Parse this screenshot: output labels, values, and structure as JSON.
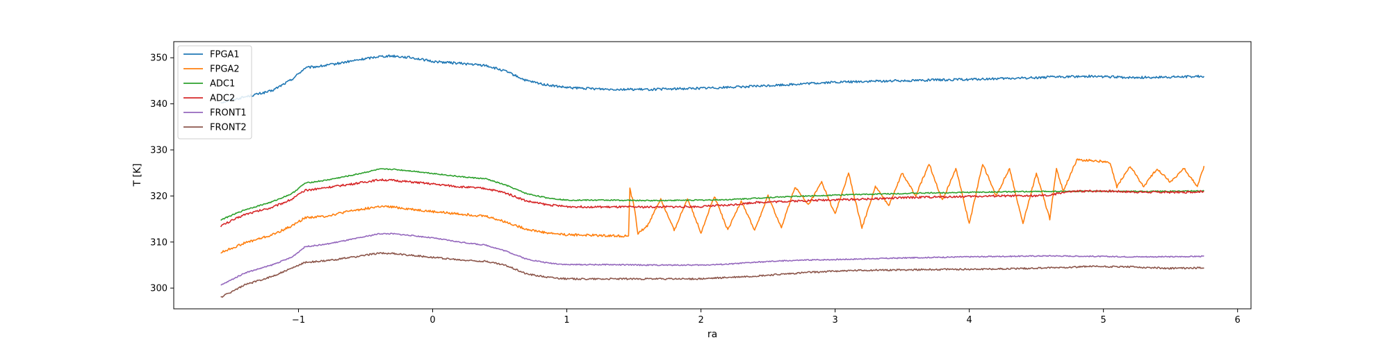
{
  "chart_data": {
    "type": "line",
    "xlabel": "ra",
    "ylabel": "T [K]",
    "xlim": [
      -1.93,
      6.1
    ],
    "ylim": [
      295.5,
      353.5
    ],
    "xticks": [
      -1,
      0,
      1,
      2,
      3,
      4,
      5,
      6
    ],
    "xtick_labels": [
      "−1",
      "0",
      "1",
      "2",
      "3",
      "4",
      "5",
      "6"
    ],
    "yticks": [
      300,
      310,
      320,
      330,
      340,
      350
    ],
    "ytick_labels": [
      "300",
      "310",
      "320",
      "330",
      "340",
      "350"
    ],
    "grid": false,
    "legend_position": "top-left",
    "series": [
      {
        "name": "FPGA1",
        "color": "#1f77b4",
        "noise": 0.25,
        "x": [
          -1.58,
          -1.4,
          -1.2,
          -1.05,
          -0.95,
          -0.8,
          -0.6,
          -0.4,
          -0.3,
          -0.15,
          0,
          0.2,
          0.4,
          0.55,
          0.7,
          0.85,
          1,
          1.3,
          1.6,
          2,
          2.2,
          2.4,
          2.6,
          2.8,
          3,
          3.3,
          3.6,
          4,
          4.3,
          4.6,
          4.9,
          5.2,
          5.5,
          5.75
        ],
        "y": [
          340.3,
          341.5,
          342.8,
          345.3,
          347.8,
          348.3,
          349.3,
          350.3,
          350.4,
          350,
          349.2,
          348.8,
          348.3,
          347,
          345,
          344.1,
          343.5,
          343.2,
          343.1,
          343.4,
          343.6,
          343.8,
          344.1,
          344.4,
          344.7,
          344.9,
          345.1,
          345.3,
          345.5,
          345.8,
          346,
          345.7,
          345.8,
          346
        ]
      },
      {
        "name": "FPGA2",
        "color": "#ff7f0e",
        "noise": 0.25,
        "x": [
          -1.58,
          -1.4,
          -1.2,
          -1.05,
          -0.95,
          -0.8,
          -0.6,
          -0.4,
          -0.3,
          -0.15,
          0,
          0.2,
          0.4,
          0.55,
          0.7,
          0.85,
          1,
          1.3,
          1.46,
          1.47,
          1.5,
          1.52,
          1.53,
          1.6,
          1.7,
          1.8,
          1.9,
          2,
          2.1,
          2.2,
          2.3,
          2.4,
          2.5,
          2.6,
          2.7,
          2.8,
          2.9,
          3,
          3.1,
          3.2,
          3.3,
          3.4,
          3.5,
          3.6,
          3.7,
          3.8,
          3.9,
          4,
          4.1,
          4.2,
          4.3,
          4.4,
          4.5,
          4.6,
          4.65,
          4.7,
          4.8,
          4.9,
          5,
          5.05,
          5.1,
          5.2,
          5.3,
          5.4,
          5.5,
          5.6,
          5.7,
          5.75
        ],
        "y": [
          307.7,
          309.8,
          311.5,
          313.5,
          315.3,
          315.6,
          316.8,
          317.7,
          317.6,
          317.1,
          316.6,
          316.1,
          315.6,
          314.3,
          312.8,
          312,
          311.6,
          311.4,
          311.3,
          321.5,
          318,
          314,
          311.8,
          313.5,
          319.3,
          312.5,
          319.5,
          312,
          320,
          312.5,
          319,
          312.5,
          320,
          313,
          322,
          318,
          323,
          316,
          325,
          313,
          322,
          318,
          325,
          320,
          327,
          319,
          326,
          314,
          327,
          320,
          326,
          314,
          325,
          315,
          326,
          321,
          327.8,
          327.7,
          327.5,
          327,
          322,
          326.5,
          322,
          326,
          323,
          326,
          322,
          326.5
        ]
      },
      {
        "name": "ADC1",
        "color": "#2ca02c",
        "noise": 0.12,
        "x": [
          -1.58,
          -1.4,
          -1.2,
          -1.05,
          -0.95,
          -0.8,
          -0.6,
          -0.4,
          -0.3,
          -0.15,
          0,
          0.2,
          0.4,
          0.55,
          0.7,
          0.85,
          1,
          1.3,
          1.6,
          2,
          2.2,
          2.4,
          2.6,
          2.8,
          3,
          3.3,
          3.6,
          4,
          4.3,
          4.6,
          4.9,
          5.2,
          5.5,
          5.75
        ],
        "y": [
          314.8,
          317,
          318.7,
          320.5,
          322.8,
          323.4,
          324.5,
          325.8,
          325.8,
          325.4,
          324.9,
          324.2,
          323.7,
          322.3,
          320.5,
          319.6,
          319.1,
          319.1,
          319,
          319.1,
          319.2,
          319.5,
          319.8,
          320,
          320.2,
          320.4,
          320.6,
          320.8,
          320.9,
          321,
          321,
          321,
          321,
          321.1
        ]
      },
      {
        "name": "ADC2",
        "color": "#d62728",
        "noise": 0.22,
        "x": [
          -1.58,
          -1.4,
          -1.2,
          -1.05,
          -0.95,
          -0.8,
          -0.6,
          -0.4,
          -0.3,
          -0.15,
          0,
          0.2,
          0.4,
          0.55,
          0.7,
          0.85,
          1,
          1.3,
          1.6,
          2,
          2.2,
          2.4,
          2.6,
          2.8,
          3,
          3.2,
          3.4,
          3.6,
          3.8,
          4,
          4.2,
          4.4,
          4.6,
          4.7,
          4.8,
          5,
          5.2,
          5.4,
          5.6,
          5.75
        ],
        "y": [
          313.5,
          316,
          317.5,
          319.3,
          321.2,
          321.8,
          322.6,
          323.5,
          323.4,
          323,
          322.6,
          322,
          321.6,
          320.6,
          318.9,
          318.1,
          317.7,
          317.6,
          317.6,
          317.7,
          318,
          318.6,
          318.8,
          319,
          319.2,
          319.3,
          319.5,
          319.7,
          319.8,
          319.9,
          320,
          320,
          320.1,
          320.8,
          321,
          321.1,
          320.9,
          320.8,
          320.8,
          321
        ]
      },
      {
        "name": "FRONT1",
        "color": "#9467bd",
        "noise": 0.12,
        "x": [
          -1.58,
          -1.4,
          -1.2,
          -1.05,
          -0.95,
          -0.8,
          -0.6,
          -0.4,
          -0.3,
          -0.15,
          0,
          0.2,
          0.4,
          0.55,
          0.7,
          0.85,
          1,
          1.3,
          1.6,
          2,
          2.2,
          2.4,
          2.6,
          2.8,
          3,
          3.3,
          3.6,
          4,
          4.3,
          4.6,
          4.9,
          5.2,
          5.5,
          5.75
        ],
        "y": [
          300.6,
          303.3,
          305,
          306.7,
          309,
          309.5,
          310.6,
          311.8,
          311.8,
          311.4,
          310.9,
          310,
          309.3,
          308,
          306.3,
          305.5,
          305.1,
          305.1,
          305,
          305,
          305.2,
          305.6,
          305.9,
          306.1,
          306.2,
          306.4,
          306.6,
          306.8,
          306.9,
          307,
          306.9,
          306.8,
          306.8,
          306.9
        ]
      },
      {
        "name": "FRONT2",
        "color": "#8c564b",
        "noise": 0.18,
        "x": [
          -1.58,
          -1.4,
          -1.2,
          -1.05,
          -0.95,
          -0.8,
          -0.6,
          -0.4,
          -0.3,
          -0.15,
          0,
          0.2,
          0.4,
          0.55,
          0.7,
          0.85,
          1,
          1.3,
          1.6,
          2,
          2.2,
          2.4,
          2.6,
          2.8,
          3,
          3.3,
          3.6,
          4,
          4.3,
          4.6,
          4.9,
          5.2,
          5.5,
          5.75
        ],
        "y": [
          298,
          300.7,
          302.5,
          304.3,
          305.6,
          305.9,
          306.7,
          307.6,
          307.5,
          307.1,
          306.7,
          306.1,
          305.8,
          304.9,
          303.1,
          302.4,
          302,
          302,
          302,
          302,
          302.3,
          302.6,
          303,
          303.4,
          303.7,
          303.9,
          304,
          304.1,
          304.2,
          304.4,
          304.7,
          304.6,
          304.3,
          304.4
        ]
      }
    ]
  }
}
